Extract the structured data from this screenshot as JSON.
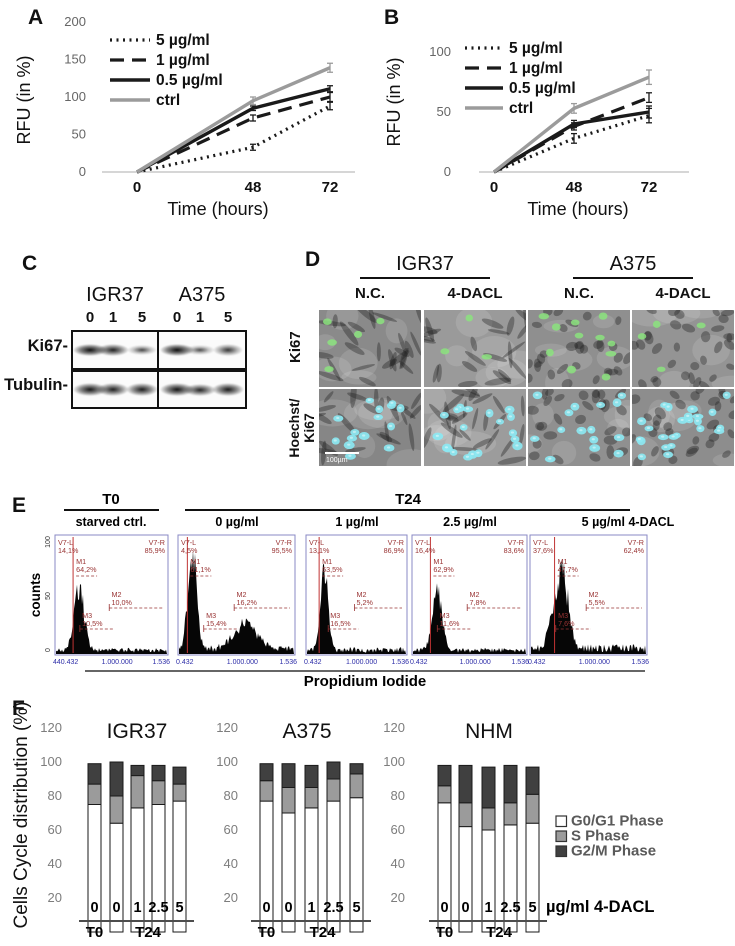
{
  "panelA": {
    "label": "A",
    "ylabel": "RFU (in %)",
    "xlabel": "Time (hours)"
  },
  "panelB": {
    "label": "B",
    "ylabel": "RFU (in %)",
    "xlabel": "Time (hours)"
  },
  "panelC": {
    "label": "C",
    "groups": [
      "IGR37",
      "A375"
    ],
    "lanes": [
      "0",
      "1",
      "5",
      "0",
      "1",
      "5"
    ],
    "rows": [
      {
        "name": "Ki67-",
        "bands": [
          0.95,
          0.8,
          0.45,
          0.97,
          0.4,
          0.6
        ]
      },
      {
        "name": "Tubulin-",
        "bands": [
          0.88,
          0.8,
          0.82,
          0.9,
          0.75,
          0.85
        ]
      }
    ]
  },
  "panelD": {
    "label": "D",
    "groups": [
      "IGR37",
      "A375"
    ],
    "conditions": [
      "N.C.",
      "4-DACL",
      "N.C.",
      "4-DACL"
    ],
    "row1_label": "Ki67",
    "row2_lines": [
      "Hoechst/",
      "Ki67"
    ],
    "scale_bar": "100µm",
    "colors": {
      "green": "#8be37e",
      "cyan": "#8ce8f2"
    },
    "tiles": [
      {
        "bg": "#8a8a8a",
        "style": "spindle",
        "bodies": 26,
        "green": 5,
        "cyan": 0,
        "seed": 101
      },
      {
        "bg": "#9a9a9a",
        "style": "spindle",
        "bodies": 24,
        "green": 3,
        "cyan": 0,
        "seed": 102
      },
      {
        "bg": "#8f8f8f",
        "style": "round",
        "bodies": 30,
        "green": 11,
        "cyan": 0,
        "seed": 103
      },
      {
        "bg": "#949494",
        "style": "round",
        "bodies": 32,
        "green": 4,
        "cyan": 0,
        "seed": 104
      },
      {
        "bg": "#868686",
        "style": "spindle",
        "bodies": 24,
        "green": 0,
        "cyan": 15,
        "seed": 105,
        "scalebar": true
      },
      {
        "bg": "#9c9c9c",
        "style": "spindle",
        "bodies": 26,
        "green": 0,
        "cyan": 19,
        "seed": 106
      },
      {
        "bg": "#909090",
        "style": "round",
        "bodies": 28,
        "green": 0,
        "cyan": 15,
        "seed": 107
      },
      {
        "bg": "#8d8d8d",
        "style": "round",
        "bodies": 34,
        "green": 0,
        "cyan": 24,
        "seed": 108
      }
    ]
  },
  "panelE": {
    "label": "E",
    "group_t0": "T0",
    "group_t24": "T24",
    "ylabel": "counts",
    "yticks": [
      "100",
      "50",
      "0"
    ],
    "xlabel": "Propidium Iodide"
  },
  "panelF": {
    "label": "F",
    "ylabel": "Cells Cycle distribution (%)",
    "yticks": [
      120,
      100,
      80,
      60,
      40,
      20
    ],
    "categories": [
      "0",
      "0",
      "1",
      "2.5",
      "5"
    ],
    "group_labels": [
      "T0",
      "T24"
    ],
    "x_unit": "µg/ml 4-DACL",
    "legend": [
      {
        "label": "G0/G1 Phase",
        "color": "#ffffff"
      },
      {
        "label": "S Phase",
        "color": "#9b9b9b"
      },
      {
        "label": "G2/M Phase",
        "color": "#404040"
      }
    ]
  },
  "chart_data": [
    {
      "id": "A",
      "type": "line",
      "panel": "A",
      "x": [
        0,
        48,
        72
      ],
      "x_tick_labels": [
        "0",
        "48",
        "72"
      ],
      "xlabel": "Time (hours)",
      "ylabel": "RFU (in %)",
      "yticks": [
        200,
        150,
        100,
        50,
        0
      ],
      "ylim": [
        0,
        200
      ],
      "legend_position": "upper-left",
      "grid": false,
      "series": [
        {
          "name": "5 µg/ml",
          "dash": "dotted",
          "color": "#1a1a1a",
          "values": [
            0,
            33,
            88
          ],
          "err": [
            0,
            4,
            5
          ]
        },
        {
          "name": "1 µg/ml",
          "dash": "dashed",
          "color": "#1a1a1a",
          "values": [
            0,
            72,
            100
          ],
          "err": [
            0,
            4,
            6
          ]
        },
        {
          "name": "0.5 µg/ml",
          "dash": "solid",
          "color": "#1a1a1a",
          "values": [
            0,
            85,
            111
          ],
          "err": [
            0,
            3,
            4
          ]
        },
        {
          "name": "ctrl",
          "dash": "solid",
          "color": "#9b9b9b",
          "values": [
            0,
            95,
            139
          ],
          "err": [
            0,
            5,
            6
          ]
        }
      ]
    },
    {
      "id": "B",
      "type": "line",
      "panel": "B",
      "x": [
        0,
        48,
        72
      ],
      "x_tick_labels": [
        "0",
        "48",
        "72"
      ],
      "xlabel": "Time (hours)",
      "ylabel": "RFU (in %)",
      "yticks": [
        100,
        50,
        0
      ],
      "ylim": [
        0,
        115
      ],
      "legend_position": "upper-left",
      "grid": false,
      "series": [
        {
          "name": "5 µg/ml",
          "dash": "dotted",
          "color": "#1a1a1a",
          "values": [
            0,
            28,
            47
          ],
          "err": [
            0,
            4,
            6
          ]
        },
        {
          "name": "1 µg/ml",
          "dash": "dashed",
          "color": "#1a1a1a",
          "values": [
            0,
            38,
            62
          ],
          "err": [
            0,
            3,
            4
          ]
        },
        {
          "name": "0.5 µg/ml",
          "dash": "solid",
          "color": "#1a1a1a",
          "values": [
            0,
            40,
            50
          ],
          "err": [
            0,
            3,
            5
          ]
        },
        {
          "name": "ctrl",
          "dash": "solid",
          "color": "#9b9b9b",
          "values": [
            0,
            53,
            79
          ],
          "err": [
            0,
            4,
            6
          ]
        }
      ]
    },
    {
      "id": "E",
      "type": "histogram",
      "x_axis": "Propidium Iodide",
      "y_axis": "counts",
      "samples": [
        {
          "group": "T0",
          "title": "starved ctrl.",
          "V7-L": "14,1%",
          "V7-R": "85,9%",
          "M1": "64,2%",
          "M2": "10,0%",
          "M3": "10,5%",
          "xticks": [
            "440.432",
            "1.000.000",
            "1.536"
          ],
          "shape": {
            "gate": 0.16,
            "peaks": [
              [
                0.21,
                0.6,
                0.045
              ]
            ],
            "noise": 0.045,
            "seed": 21
          }
        },
        {
          "group": "T24",
          "title": "0 µg/ml",
          "V7-L": "4,5%",
          "V7-R": "95,5%",
          "M1": "61,1%",
          "M2": "16,2%",
          "M3": "15,4%",
          "xticks": [
            "0.432",
            "1.000.000",
            "1.536"
          ],
          "shape": {
            "gate": 0.08,
            "peaks": [
              [
                0.115,
                1.0,
                0.038
              ],
              [
                0.58,
                0.24,
                0.1
              ]
            ],
            "noise": 0.06,
            "seed": 22
          }
        },
        {
          "group": "T24",
          "title": "1 µg/ml",
          "V7-L": "13,1%",
          "V7-R": "86,9%",
          "M1": "63,5%",
          "M2": "5,2%",
          "M3": "16,5%",
          "xticks": [
            "0.432",
            "1.000.000",
            "1.536"
          ],
          "shape": {
            "gate": 0.13,
            "peaks": [
              [
                0.175,
                0.72,
                0.038
              ]
            ],
            "noise": 0.05,
            "seed": 23
          }
        },
        {
          "group": "T24",
          "title": "2.5 µg/ml",
          "V7-L": "16,4%",
          "V7-R": "83,6%",
          "M1": "62,9%",
          "M2": "7,8%",
          "M3": "11,6%",
          "xticks": [
            "0.432",
            "1.000.000",
            "1.536"
          ],
          "shape": {
            "gate": 0.16,
            "peaks": [
              [
                0.215,
                0.56,
                0.042
              ]
            ],
            "noise": 0.045,
            "seed": 24
          }
        },
        {
          "group": "T24",
          "title": "5 µg/ml 4-DACL",
          "V7-L": "37,6%",
          "V7-R": "62,4%",
          "M1": "47,7%",
          "M2": "5,5%",
          "M3": "7,6%",
          "xticks": [
            "0.432",
            "1.000.000",
            "1.536"
          ],
          "shape": {
            "gate": 0.21,
            "peaks": [
              [
                0.27,
                0.8,
                0.05
              ],
              [
                0.17,
                0.22,
                0.03
              ]
            ],
            "noise": 0.07,
            "seed": 25
          }
        }
      ]
    },
    {
      "id": "F-IGR37",
      "type": "stacked-bar",
      "title": "IGR37",
      "categories": [
        "0",
        "0",
        "1",
        "2.5",
        "5"
      ],
      "ylim": [
        20,
        120
      ],
      "series": [
        {
          "name": "G0/G1 Phase",
          "values": [
            75,
            64,
            73,
            75,
            77
          ]
        },
        {
          "name": "S Phase",
          "values": [
            12,
            16,
            19,
            14,
            10
          ]
        },
        {
          "name": "G2/M Phase",
          "values": [
            12,
            20,
            6,
            9,
            10
          ]
        }
      ]
    },
    {
      "id": "F-A375",
      "type": "stacked-bar",
      "title": "A375",
      "categories": [
        "0",
        "0",
        "1",
        "2.5",
        "5"
      ],
      "ylim": [
        20,
        120
      ],
      "series": [
        {
          "name": "G0/G1 Phase",
          "values": [
            77,
            70,
            73,
            77,
            79
          ]
        },
        {
          "name": "S Phase",
          "values": [
            12,
            15,
            12,
            13,
            14
          ]
        },
        {
          "name": "G2/M Phase",
          "values": [
            10,
            14,
            13,
            10,
            6
          ]
        }
      ]
    },
    {
      "id": "F-NHM",
      "type": "stacked-bar",
      "title": "NHM",
      "categories": [
        "0",
        "0",
        "1",
        "2.5",
        "5"
      ],
      "ylim": [
        20,
        120
      ],
      "series": [
        {
          "name": "G0/G1 Phase",
          "values": [
            76,
            62,
            60,
            63,
            64
          ]
        },
        {
          "name": "S Phase",
          "values": [
            10,
            14,
            13,
            13,
            17
          ]
        },
        {
          "name": "G2/M Phase",
          "values": [
            12,
            22,
            24,
            22,
            16
          ]
        }
      ]
    }
  ]
}
